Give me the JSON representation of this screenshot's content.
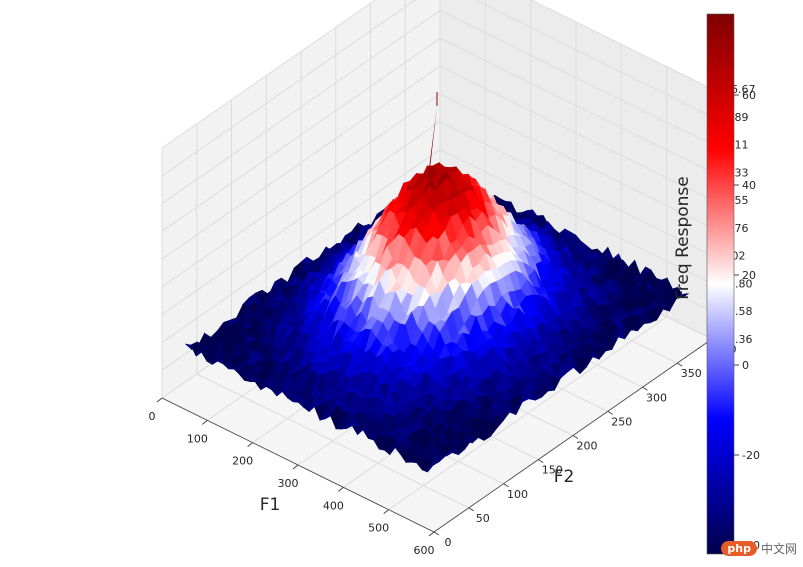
{
  "chart_data": {
    "type": "surface3d",
    "title": "",
    "xlabel": "F1",
    "ylabel": "F2",
    "zlabel": "Freq Response",
    "xlim": [
      0,
      600
    ],
    "ylim": [
      0,
      400
    ],
    "zlim": [
      -70.36,
      116.67
    ],
    "x_ticks": [
      "0",
      "100",
      "200",
      "300",
      "400",
      "500",
      "600"
    ],
    "y_ticks": [
      "0",
      "50",
      "100",
      "150",
      "200",
      "250",
      "300",
      "350",
      "400"
    ],
    "z_ticks": [
      "116.67",
      "95.89",
      "75.11",
      "54.33",
      "33.55",
      "12.76",
      "-8.02",
      "-28.80",
      "-49.58",
      "-70.36"
    ],
    "colormap": "seismic",
    "colorbar": {
      "range": [
        -42,
        78
      ],
      "ticks": [
        "60",
        "40",
        "20",
        "0",
        "-20",
        "-40"
      ],
      "tick_values": [
        60,
        40,
        20,
        0,
        -20,
        -40
      ]
    },
    "peak": {
      "f1": 300,
      "f2": 200,
      "value": 78
    },
    "grid": true
  },
  "watermark": {
    "badge": "php",
    "text": "中文网"
  },
  "colors": {
    "pane": "#f2f2f2",
    "grid": "#dcdcdc",
    "low": "#00004c",
    "mid": "#ffffff",
    "high": "#7f0000"
  }
}
